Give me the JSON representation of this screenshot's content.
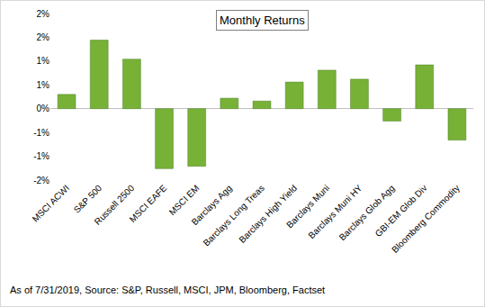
{
  "chart_data": {
    "type": "bar",
    "title": "Monthly Returns",
    "categories": [
      "MSCI ACWI",
      "S&P 500",
      "Russell 2500",
      "MSCI EAFE",
      "MSCI EM",
      "Barclays Agg",
      "Barclays Long Treas",
      "Barclays High Yield",
      "Barclays Muni",
      "Barclays Muni HY",
      "Barclays Glob Agg",
      "GBI-EM Glob Div",
      "Bloomberg Commodity"
    ],
    "values": [
      0.3,
      1.44,
      1.04,
      -1.26,
      -1.21,
      0.22,
      0.16,
      0.56,
      0.81,
      0.62,
      -0.26,
      0.92,
      -0.66
    ],
    "color": "#77b237",
    "ylim": [
      -1.5,
      2.0
    ],
    "yticks": [
      {
        "value": -1.5,
        "label": "-2%"
      },
      {
        "value": -1.0,
        "label": "-1%"
      },
      {
        "value": -0.5,
        "label": "-1%"
      },
      {
        "value": 0,
        "label": "0%"
      },
      {
        "value": 0.5,
        "label": "1%"
      },
      {
        "value": 1.0,
        "label": "1%"
      },
      {
        "value": 1.5,
        "label": "2%"
      },
      {
        "value": 2.0,
        "label": "2%"
      }
    ],
    "grid": false,
    "annotations": [
      "As of 7/31/2019, Source: S&P, Russell, MSCI, JPM, Bloomberg, Factset"
    ]
  }
}
